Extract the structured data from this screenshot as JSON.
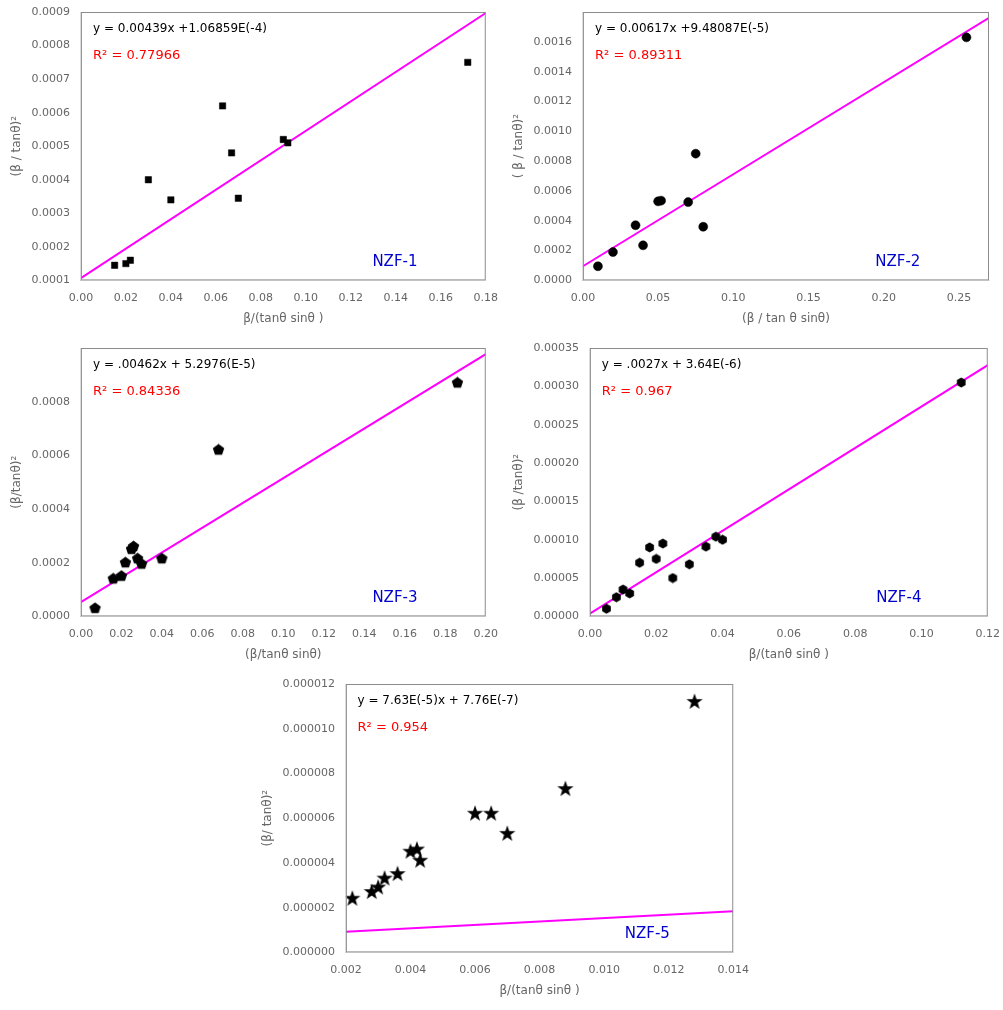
{
  "chart_data": [
    {
      "type": "scatter",
      "xlabel": "β/(tanθ sinθ )",
      "ylabel": "(β / tanθ)²",
      "annotations": [
        {
          "text": "y = 0.00439x +1.06859E(-4)",
          "color": "black"
        },
        {
          "text": "R² = 0.77966",
          "color": "red"
        },
        {
          "text": "NZF-1",
          "color": "#0000CC"
        }
      ],
      "xlim": [
        0.0,
        0.18
      ],
      "ylim": [
        0.0001,
        0.0009
      ],
      "xticks": [
        {
          "value": 0,
          "label": "0.00"
        },
        0.02,
        0.04,
        0.06,
        0.08,
        {
          "value": 0.1,
          "label": "0.10"
        },
        0.12,
        0.14,
        0.16,
        0.18
      ],
      "yticks": [
        0.0001,
        0.0002,
        0.0003,
        0.0004,
        0.0005,
        0.0006,
        0.0007,
        0.0008,
        0.0009
      ],
      "grid": false,
      "series": [
        {
          "type": "scatter",
          "marker": "square",
          "color": "black",
          "x": [
            0.015,
            0.02,
            0.022,
            0.03,
            0.04,
            0.063,
            0.067,
            0.07,
            0.09,
            0.092,
            0.172
          ],
          "values": [
            0.000145,
            0.00015,
            0.00016,
            0.0004,
            0.00034,
            0.00062,
            0.00048,
            0.000345,
            0.00052,
            0.00051,
            0.00075
          ]
        },
        {
          "type": "line",
          "line_style": "solid",
          "color": "#FF00FF",
          "x": [
            0.0,
            0.18
          ],
          "values": [
            0.000106859,
            0.000897059
          ]
        }
      ]
    },
    {
      "type": "scatter",
      "xlabel": "(β / tan θ sinθ)",
      "ylabel": "( β / tanθ)²",
      "annotations": [
        {
          "text": "y = 0.00617x +9.48087E(-5)",
          "color": "black"
        },
        {
          "text": "R² = 0.89311",
          "color": "red"
        },
        {
          "text": "NZF-2",
          "color": "#0000CC"
        }
      ],
      "xlim": [
        0.0,
        0.27
      ],
      "ylim": [
        0.0,
        0.0018
      ],
      "xticks": [
        {
          "value": 0,
          "label": "0.00"
        },
        0.05,
        {
          "value": 0.1,
          "label": "0.10"
        },
        0.15,
        {
          "value": 0.2,
          "label": "0.20"
        },
        0.25
      ],
      "yticks": [
        {
          "value": 0,
          "label": "0.0000"
        },
        0.0002,
        0.0004,
        0.0006,
        0.0008,
        {
          "value": 0.001,
          "label": "0.0010"
        },
        0.0012,
        0.0014,
        0.0016
      ],
      "grid": false,
      "series": [
        {
          "type": "scatter",
          "marker": "circle",
          "color": "black",
          "x": [
            0.01,
            0.02,
            0.035,
            0.04,
            0.05,
            0.052,
            0.07,
            0.075,
            0.08,
            0.255
          ],
          "values": [
            9.5e-05,
            0.00019,
            0.00037,
            0.000235,
            0.00053,
            0.000535,
            0.000525,
            0.00085,
            0.00036,
            0.00163
          ]
        },
        {
          "type": "line",
          "line_style": "solid",
          "color": "#FF00FF",
          "x": [
            0.0,
            0.27
          ],
          "values": [
            9.48087e-05,
            0.0017607087
          ]
        }
      ]
    },
    {
      "type": "scatter",
      "xlabel": "(β/tanθ sinθ)",
      "ylabel": "(β/tanθ)²",
      "annotations": [
        {
          "text": "y = .00462x + 5.2976(E-5)",
          "color": "black"
        },
        {
          "text": "R² = 0.84336",
          "color": "red"
        },
        {
          "text": "NZF-3",
          "color": "#0000CC"
        }
      ],
      "xlim": [
        0.0,
        0.2
      ],
      "ylim": [
        0.0,
        0.001
      ],
      "xticks": [
        {
          "value": 0,
          "label": "0.00"
        },
        0.02,
        0.04,
        0.06,
        0.08,
        {
          "value": 0.1,
          "label": "0.10"
        },
        0.12,
        0.14,
        0.16,
        0.18,
        {
          "value": 0.2,
          "label": "0.20"
        }
      ],
      "yticks": [
        {
          "value": 0,
          "label": "0.0000"
        },
        0.0002,
        0.0004,
        0.0006,
        0.0008
      ],
      "grid": false,
      "series": [
        {
          "type": "scatter",
          "marker": "pentagon",
          "color": "black",
          "x": [
            0.007,
            0.016,
            0.02,
            0.022,
            0.025,
            0.026,
            0.028,
            0.03,
            0.04,
            0.068,
            0.186
          ],
          "values": [
            3e-05,
            0.00014,
            0.00015,
            0.0002,
            0.00025,
            0.00026,
            0.000215,
            0.000195,
            0.000215,
            0.00062,
            0.00087
          ]
        },
        {
          "type": "line",
          "line_style": "solid",
          "color": "#FF00FF",
          "x": [
            0.0,
            0.2
          ],
          "values": [
            5.2976e-05,
            0.000976976
          ]
        }
      ]
    },
    {
      "type": "scatter",
      "xlabel": "β/(tanθ sinθ )",
      "ylabel": "(β /tanθ)²",
      "annotations": [
        {
          "text": "y = .0027x + 3.64E(-6)",
          "color": "black"
        },
        {
          "text": "R² = 0.967",
          "color": "red"
        },
        {
          "text": "NZF-4",
          "color": "#0000CC"
        }
      ],
      "xlim": [
        0.0,
        0.12
      ],
      "ylim": [
        0.0,
        0.00035
      ],
      "xticks": [
        {
          "value": 0,
          "label": "0.00"
        },
        0.02,
        0.04,
        0.06,
        0.08,
        {
          "value": 0.1,
          "label": "0.10"
        },
        0.12
      ],
      "yticks": [
        {
          "value": 0,
          "label": "0.00000"
        },
        5e-05,
        {
          "value": 0.0001,
          "label": "0.00010"
        },
        0.00015,
        {
          "value": 0.0002,
          "label": "0.00020"
        },
        0.00025,
        {
          "value": 0.0003,
          "label": "0.00030"
        },
        0.00035
      ],
      "grid": false,
      "series": [
        {
          "type": "scatter",
          "marker": "hexagon",
          "color": "black",
          "x": [
            0.005,
            0.008,
            0.01,
            0.012,
            0.015,
            0.018,
            0.02,
            0.022,
            0.025,
            0.03,
            0.035,
            0.038,
            0.04,
            0.112
          ],
          "values": [
            1e-05,
            2.5e-05,
            3.5e-05,
            3e-05,
            7e-05,
            9e-05,
            7.5e-05,
            9.5e-05,
            5e-05,
            6.8e-05,
            9.1e-05,
            0.000104,
            0.0001,
            0.000305
          ]
        },
        {
          "type": "line",
          "line_style": "solid",
          "color": "#FF00FF",
          "x": [
            0.0,
            0.12
          ],
          "values": [
            3.64e-06,
            0.00032764
          ]
        }
      ]
    },
    {
      "type": "scatter",
      "xlabel": "β/(tanθ sinθ )",
      "ylabel": "(β/ tanθ)²",
      "annotations": [
        {
          "text": "y = 7.63E(-5)x + 7.76E(-7)",
          "color": "black"
        },
        {
          "text": "R² = 0.954",
          "color": "red"
        },
        {
          "text": "NZF-5",
          "color": "#0000CC"
        }
      ],
      "xlim": [
        0.002,
        0.014
      ],
      "ylim": [
        0.0,
        1.2e-05
      ],
      "xticks": [
        0.002,
        0.004,
        0.006,
        0.008,
        {
          "value": 0.01,
          "label": "0.010"
        },
        0.012,
        0.014
      ],
      "yticks": [
        {
          "value": 0,
          "label": "0.000000"
        },
        2e-06,
        4e-06,
        6e-06,
        8e-06,
        {
          "value": 1e-05,
          "label": "0.000010"
        },
        1.2e-05
      ],
      "grid": false,
      "series": [
        {
          "type": "scatter",
          "marker": "star",
          "color": "black",
          "x": [
            0.0022,
            0.0028,
            0.003,
            0.0032,
            0.0036,
            0.004,
            0.0042,
            0.0043,
            0.006,
            0.0065,
            0.007,
            0.0088,
            0.0128
          ],
          "values": [
            2.4e-06,
            2.7e-06,
            2.9e-06,
            3.3e-06,
            3.5e-06,
            4.5e-06,
            4.6e-06,
            4.1e-06,
            6.2e-06,
            6.2e-06,
            5.3e-06,
            7.3e-06,
            1.12e-05
          ]
        },
        {
          "type": "line",
          "line_style": "solid",
          "color": "#FF00FF",
          "x": [
            0.002,
            0.014
          ],
          "values": [
            9.286e-07,
            1.8442e-06
          ]
        }
      ]
    }
  ]
}
